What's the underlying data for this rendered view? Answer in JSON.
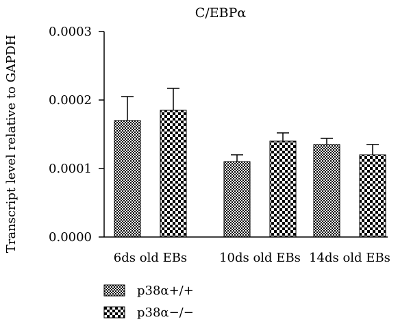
{
  "chart_data": {
    "type": "bar",
    "title": "C/EBPα",
    "ylabel": "Transcript level relative to GAPDH",
    "xlabel": "",
    "categories": [
      "6ds old EBs",
      "10ds old EBs",
      "14ds old EBs"
    ],
    "ylim": [
      0,
      0.0003
    ],
    "yticks": [
      "0.0000",
      "0.0001",
      "0.0002",
      "0.0003"
    ],
    "series": [
      {
        "name": "p38α+/+",
        "values": [
          0.00017,
          0.00011,
          0.000135
        ],
        "errors": [
          3.5e-05,
          1e-05,
          9e-06
        ],
        "pattern": "fine-checker"
      },
      {
        "name": "p38α−/−",
        "values": [
          0.000185,
          0.00014,
          0.00012
        ],
        "errors": [
          3.2e-05,
          1.2e-05,
          1.5e-05
        ],
        "pattern": "coarse-checker"
      }
    ],
    "legend_position": "bottom-left",
    "grid": false,
    "colors": {
      "bar_fg": "#000000",
      "bar_bg": "#ffffff",
      "axis": "#000000"
    }
  }
}
